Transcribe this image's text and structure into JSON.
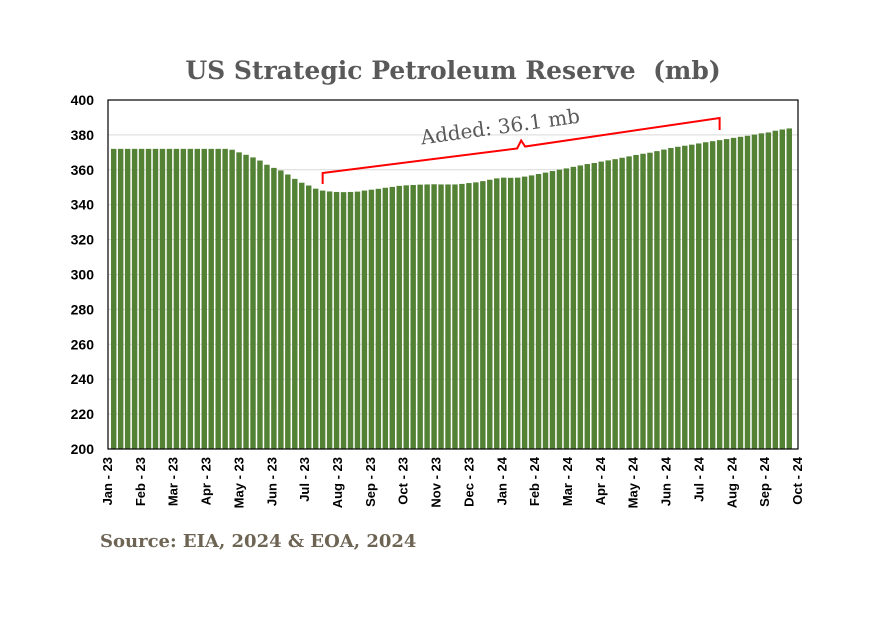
{
  "chart_data": {
    "type": "bar",
    "title": "US Strategic Petroleum Reserve",
    "title_unit": "(mb)",
    "source": "Source: EIA, 2024 & EOA, 2024",
    "ylim": [
      200,
      400
    ],
    "yticks": [
      200,
      220,
      240,
      260,
      280,
      300,
      320,
      340,
      360,
      380,
      400
    ],
    "xticks": [
      "Jan - 23",
      "Feb - 23",
      "Mar - 23",
      "Apr - 23",
      "May - 23",
      "Jun - 23",
      "Jul - 23",
      "Aug - 23",
      "Sep - 23",
      "Oct - 23",
      "Nov - 23",
      "Dec - 23",
      "Jan - 24",
      "Feb - 24",
      "Mar - 24",
      "Apr - 24",
      "May - 24",
      "Jun - 24",
      "Jul - 24",
      "Aug - 24",
      "Sep - 24",
      "Oct - 24"
    ],
    "grid": true,
    "bar_color": "#548235",
    "annotation": {
      "text": "Added: 36.1 mb",
      "color": "#ff0000",
      "from_week": 30,
      "to_week": 87
    },
    "values": [
      372.0,
      372.0,
      372.0,
      372.0,
      372.0,
      372.0,
      372.0,
      372.0,
      372.0,
      372.0,
      372.0,
      372.0,
      372.0,
      372.0,
      372.0,
      372.0,
      372.0,
      371.5,
      370.0,
      368.6,
      367.1,
      365.3,
      362.9,
      361.1,
      359.6,
      357.3,
      354.8,
      352.6,
      351.0,
      349.2,
      348.1,
      347.6,
      347.3,
      347.2,
      347.3,
      347.5,
      348.1,
      348.6,
      349.1,
      349.7,
      350.2,
      350.8,
      351.1,
      351.3,
      351.5,
      351.6,
      351.7,
      351.6,
      351.6,
      351.6,
      351.9,
      352.4,
      352.8,
      353.5,
      354.3,
      355.1,
      355.5,
      355.4,
      355.5,
      356.1,
      356.8,
      357.6,
      358.4,
      359.3,
      360.1,
      360.8,
      361.7,
      362.5,
      363.3,
      363.9,
      364.7,
      365.4,
      366.1,
      366.9,
      367.7,
      368.5,
      369.2,
      369.8,
      370.7,
      371.6,
      372.5,
      373.2,
      373.8,
      374.4,
      375.1,
      375.8,
      376.4,
      377.0,
      377.6,
      378.3,
      378.9,
      379.5,
      380.2,
      380.9,
      381.4,
      382.4,
      383.1,
      383.7
    ]
  }
}
